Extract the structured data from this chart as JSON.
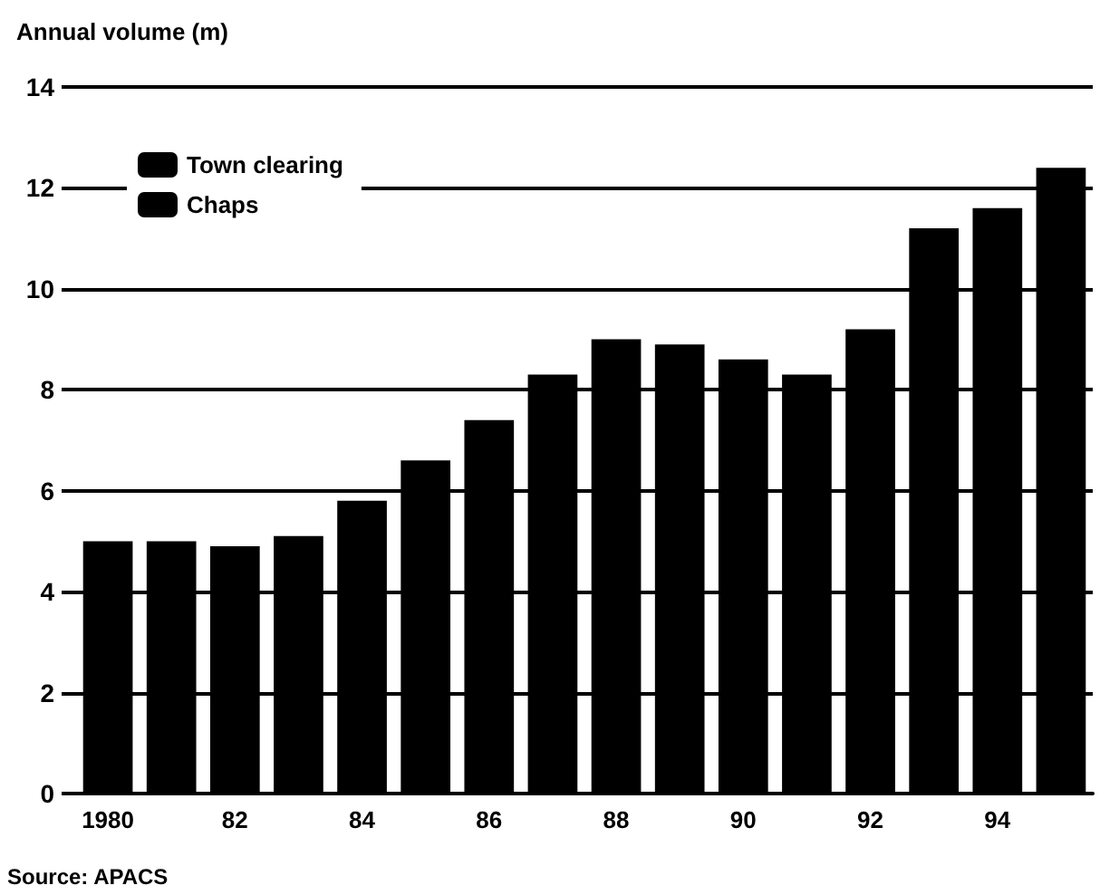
{
  "chart_data": {
    "type": "bar",
    "ylabel": "Annual volume (m)",
    "categories": [
      "1980",
      null,
      "82",
      null,
      "84",
      null,
      "86",
      null,
      "88",
      null,
      "90",
      null,
      "92",
      null,
      "94",
      null
    ],
    "stacked": true,
    "series": [
      {
        "name": "Town clearing",
        "color": "#000000",
        "values": [
          null,
          null,
          null,
          null,
          null,
          null,
          null,
          null,
          null,
          null,
          null,
          null,
          null,
          null,
          null,
          null
        ]
      },
      {
        "name": "Chaps",
        "color": "#000000",
        "values": [
          5.0,
          5.0,
          4.9,
          5.1,
          5.8,
          6.6,
          7.4,
          8.3,
          9.0,
          8.9,
          8.6,
          8.3,
          9.2,
          11.2,
          11.6,
          12.4
        ]
      }
    ],
    "ylim": [
      0,
      14
    ],
    "yticks": [
      0,
      2,
      4,
      6,
      8,
      10,
      12,
      14
    ],
    "grid": "y",
    "legend": "top left",
    "annotations": [
      "Source: APACS"
    ]
  }
}
